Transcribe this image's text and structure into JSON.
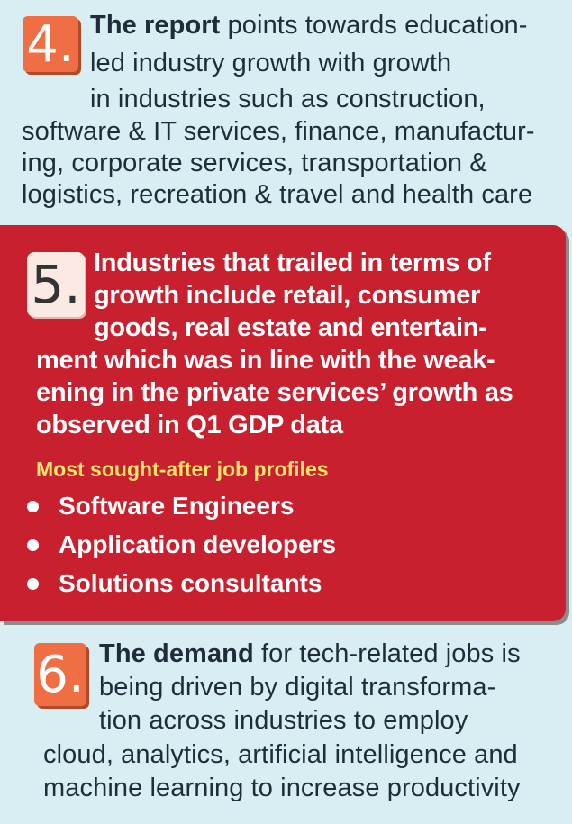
{
  "items": [
    {
      "number": "4.",
      "lead": "The report",
      "lines": [
        " points towards education-",
        "led industry growth with growth",
        "in industries such as construction,",
        "software & IT services, finance, manufactur-",
        "ing, corporate services, transportation &",
        "logistics, recreation & travel and health care"
      ]
    },
    {
      "number": "5.",
      "lead": "Industries that",
      "lines": [
        " trailed in terms of",
        "growth include retail, consumer",
        "goods, real estate and entertain-",
        "ment which was in line with the weak-",
        "ening in the private services’ growth as",
        "observed in Q1 GDP data"
      ],
      "subheading": "Most sought-after job profiles",
      "bullets": [
        "Software Engineers",
        "Application developers",
        "Solutions consultants"
      ]
    },
    {
      "number": "6.",
      "lead": "The demand",
      "lines": [
        " for tech-related jobs is",
        "being driven by digital transforma-",
        "tion across industries to employ",
        "cloud, analytics, artificial intelligence and",
        "machine learning to increase productivity"
      ]
    }
  ],
  "colors": {
    "background": "#d9eef2",
    "card": "#c8202e",
    "number_box": "#ef6e43",
    "subheading": "#ffe36b"
  }
}
